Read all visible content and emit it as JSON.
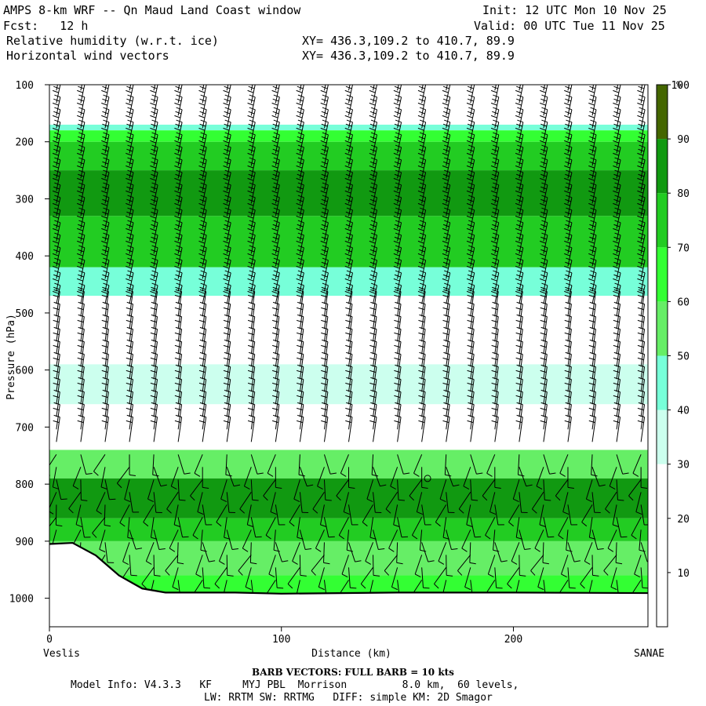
{
  "header": {
    "title_left": "AMPS 8-km WRF -- Qn Maud Land Coast window",
    "fcst": "Fcst:   12 h",
    "field1": "Relative humidity (w.r.t. ice)",
    "field2": "Horizontal wind vectors",
    "init": "Init: 12 UTC Mon 10 Nov 25",
    "valid": "Valid: 00 UTC Tue 11 Nov 25",
    "xy1": "XY= 436.3,109.2 to 410.7, 89.9",
    "xy2": "XY= 436.3,109.2 to 410.7, 89.9"
  },
  "footer": {
    "left_place": "Veslis",
    "right_place": "SANAE",
    "barb_note": "BARB VECTORS:  FULL BARB = 10 kts",
    "model_line1": "Model Info: V4.3.3   KF     MYJ PBL  Morrison         8.0 km,  60 levels,",
    "model_line2": "LW: RRTM SW: RRTMG   DIFF: simple KM: 2D Smagor"
  },
  "chart_data": {
    "type": "heatmap",
    "title": "Relative humidity (w.r.t. ice)",
    "xlabel": "Distance (km)",
    "ylabel": "Pressure (hPa)",
    "xlim": [
      0,
      258
    ],
    "ylim": [
      1050,
      100
    ],
    "x_ticks": [
      0,
      100,
      200
    ],
    "y_ticks": [
      100,
      200,
      300,
      400,
      500,
      600,
      700,
      800,
      900,
      1000
    ],
    "colorbar": {
      "unit": "%",
      "levels": [
        10,
        20,
        30,
        40,
        50,
        60,
        70,
        80,
        90,
        100
      ],
      "colors": [
        "#ffffff",
        "#ffffff",
        "#ffffff",
        "#ccffee",
        "#77ffd9",
        "#66ee66",
        "#33ff33",
        "#22cc22",
        "#119911",
        "#446600"
      ]
    },
    "bands": [
      {
        "p_top": 100,
        "p_bot": 170,
        "rh": 15
      },
      {
        "p_top": 170,
        "p_bot": 180,
        "rh": 45
      },
      {
        "p_top": 180,
        "p_bot": 200,
        "rh": 65
      },
      {
        "p_top": 200,
        "p_bot": 250,
        "rh": 75
      },
      {
        "p_top": 250,
        "p_bot": 330,
        "rh": 80
      },
      {
        "p_top": 330,
        "p_bot": 420,
        "rh": 70
      },
      {
        "p_top": 420,
        "p_bot": 470,
        "rh": 45
      },
      {
        "p_top": 470,
        "p_bot": 590,
        "rh": 20
      },
      {
        "p_top": 590,
        "p_bot": 660,
        "rh": 35
      },
      {
        "p_top": 660,
        "p_bot": 740,
        "rh": 20
      },
      {
        "p_top": 740,
        "p_bot": 790,
        "rh": 55
      },
      {
        "p_top": 790,
        "p_bot": 860,
        "rh": 85
      },
      {
        "p_top": 860,
        "p_bot": 900,
        "rh": 70
      },
      {
        "p_top": 900,
        "p_bot": 960,
        "rh": 50
      },
      {
        "p_top": 960,
        "p_bot": 1000,
        "rh": 65
      }
    ],
    "terrain": [
      {
        "x": 0,
        "p": 905
      },
      {
        "x": 10,
        "p": 903
      },
      {
        "x": 20,
        "p": 925
      },
      {
        "x": 30,
        "p": 960
      },
      {
        "x": 40,
        "p": 983
      },
      {
        "x": 50,
        "p": 990
      },
      {
        "x": 80,
        "p": 990
      },
      {
        "x": 100,
        "p": 992
      },
      {
        "x": 150,
        "p": 990
      },
      {
        "x": 200,
        "p": 990
      },
      {
        "x": 258,
        "p": 991
      }
    ],
    "marker": {
      "x": 163,
      "p": 790
    }
  }
}
